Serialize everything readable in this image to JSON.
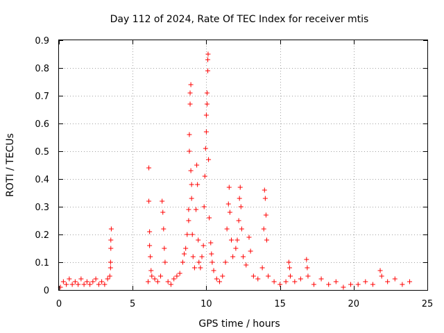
{
  "chart_data": {
    "type": "scatter",
    "title": "Day 112 of 2024, Rate Of TEC Index for receiver mtis",
    "xlabel": "GPS time / hours",
    "ylabel": "ROTI / TECUs",
    "xlim": [
      0,
      25
    ],
    "ylim": [
      0,
      0.9
    ],
    "xticks": [
      0,
      5,
      10,
      15,
      20,
      25
    ],
    "xtick_labels": [
      "0",
      "5",
      "10",
      "15",
      "20",
      "25"
    ],
    "yticks": [
      0,
      0.1,
      0.2,
      0.3,
      0.4,
      0.5,
      0.6,
      0.7,
      0.8,
      0.9
    ],
    "ytick_labels": [
      "0",
      "0.1",
      "0.2",
      "0.3",
      "0.4",
      "0.5",
      "0.6",
      "0.7",
      "0.8",
      "0.9"
    ],
    "grid": true,
    "marker": "+",
    "color": "#ff0000",
    "series": [
      {
        "points": [
          [
            0.1,
            0.01
          ],
          [
            0.3,
            0.03
          ],
          [
            0.5,
            0.02
          ],
          [
            0.7,
            0.04
          ],
          [
            0.9,
            0.02
          ],
          [
            1.1,
            0.03
          ],
          [
            1.3,
            0.02
          ],
          [
            1.5,
            0.04
          ],
          [
            1.7,
            0.02
          ],
          [
            1.9,
            0.03
          ],
          [
            2.1,
            0.02
          ],
          [
            2.3,
            0.03
          ],
          [
            2.5,
            0.04
          ],
          [
            2.7,
            0.02
          ],
          [
            2.9,
            0.03
          ],
          [
            3.1,
            0.02
          ],
          [
            3.3,
            0.04
          ],
          [
            3.45,
            0.05
          ],
          [
            3.5,
            0.08
          ],
          [
            3.5,
            0.1
          ],
          [
            3.52,
            0.15
          ],
          [
            3.52,
            0.18
          ],
          [
            3.55,
            0.22
          ],
          [
            6.05,
            0.03
          ],
          [
            6.1,
            0.44
          ],
          [
            6.1,
            0.32
          ],
          [
            6.15,
            0.21
          ],
          [
            6.15,
            0.16
          ],
          [
            6.2,
            0.12
          ],
          [
            6.25,
            0.07
          ],
          [
            6.3,
            0.05
          ],
          [
            6.5,
            0.04
          ],
          [
            6.7,
            0.03
          ],
          [
            6.9,
            0.05
          ],
          [
            7.0,
            0.32
          ],
          [
            7.05,
            0.28
          ],
          [
            7.1,
            0.22
          ],
          [
            7.15,
            0.15
          ],
          [
            7.2,
            0.1
          ],
          [
            7.4,
            0.03
          ],
          [
            7.6,
            0.02
          ],
          [
            7.8,
            0.04
          ],
          [
            8.0,
            0.05
          ],
          [
            8.2,
            0.06
          ],
          [
            8.4,
            0.1
          ],
          [
            8.5,
            0.13
          ],
          [
            8.6,
            0.15
          ],
          [
            8.7,
            0.2
          ],
          [
            8.8,
            0.25
          ],
          [
            8.8,
            0.29
          ],
          [
            8.85,
            0.5
          ],
          [
            8.85,
            0.56
          ],
          [
            8.9,
            0.67
          ],
          [
            8.9,
            0.71
          ],
          [
            8.95,
            0.74
          ],
          [
            8.95,
            0.43
          ],
          [
            9.0,
            0.38
          ],
          [
            9.0,
            0.33
          ],
          [
            9.05,
            0.2
          ],
          [
            9.1,
            0.12
          ],
          [
            9.2,
            0.08
          ],
          [
            9.3,
            0.29
          ],
          [
            9.35,
            0.45
          ],
          [
            9.4,
            0.38
          ],
          [
            9.45,
            0.18
          ],
          [
            9.5,
            0.1
          ],
          [
            9.6,
            0.08
          ],
          [
            9.7,
            0.12
          ],
          [
            9.8,
            0.16
          ],
          [
            9.85,
            0.3
          ],
          [
            9.9,
            0.41
          ],
          [
            9.95,
            0.51
          ],
          [
            10.0,
            0.57
          ],
          [
            10.0,
            0.63
          ],
          [
            10.05,
            0.67
          ],
          [
            10.05,
            0.71
          ],
          [
            10.1,
            0.79
          ],
          [
            10.1,
            0.83
          ],
          [
            10.12,
            0.85
          ],
          [
            10.15,
            0.47
          ],
          [
            10.2,
            0.26
          ],
          [
            10.3,
            0.17
          ],
          [
            10.35,
            0.13
          ],
          [
            10.4,
            0.1
          ],
          [
            10.5,
            0.07
          ],
          [
            10.7,
            0.04
          ],
          [
            10.9,
            0.03
          ],
          [
            11.1,
            0.05
          ],
          [
            11.3,
            0.1
          ],
          [
            11.4,
            0.22
          ],
          [
            11.5,
            0.31
          ],
          [
            11.55,
            0.37
          ],
          [
            11.6,
            0.28
          ],
          [
            11.7,
            0.18
          ],
          [
            11.8,
            0.12
          ],
          [
            12.0,
            0.15
          ],
          [
            12.1,
            0.18
          ],
          [
            12.2,
            0.25
          ],
          [
            12.25,
            0.33
          ],
          [
            12.3,
            0.37
          ],
          [
            12.35,
            0.3
          ],
          [
            12.4,
            0.22
          ],
          [
            12.5,
            0.12
          ],
          [
            12.7,
            0.09
          ],
          [
            12.9,
            0.19
          ],
          [
            13.0,
            0.14
          ],
          [
            13.2,
            0.05
          ],
          [
            13.5,
            0.04
          ],
          [
            13.8,
            0.08
          ],
          [
            13.9,
            0.22
          ],
          [
            13.95,
            0.36
          ],
          [
            14.0,
            0.33
          ],
          [
            14.05,
            0.27
          ],
          [
            14.1,
            0.18
          ],
          [
            14.2,
            0.05
          ],
          [
            14.6,
            0.03
          ],
          [
            15.0,
            0.02
          ],
          [
            15.4,
            0.03
          ],
          [
            15.6,
            0.1
          ],
          [
            15.65,
            0.08
          ],
          [
            15.7,
            0.05
          ],
          [
            16.0,
            0.03
          ],
          [
            16.4,
            0.04
          ],
          [
            16.8,
            0.11
          ],
          [
            16.85,
            0.08
          ],
          [
            16.9,
            0.05
          ],
          [
            17.3,
            0.02
          ],
          [
            17.8,
            0.04
          ],
          [
            18.3,
            0.02
          ],
          [
            18.8,
            0.03
          ],
          [
            19.3,
            0.01
          ],
          [
            19.8,
            0.02
          ],
          [
            20.3,
            0.02
          ],
          [
            20.8,
            0.03
          ],
          [
            21.3,
            0.02
          ],
          [
            21.8,
            0.07
          ],
          [
            21.9,
            0.05
          ],
          [
            22.3,
            0.03
          ],
          [
            22.8,
            0.04
          ],
          [
            23.3,
            0.02
          ],
          [
            23.8,
            0.03
          ]
        ]
      }
    ]
  }
}
